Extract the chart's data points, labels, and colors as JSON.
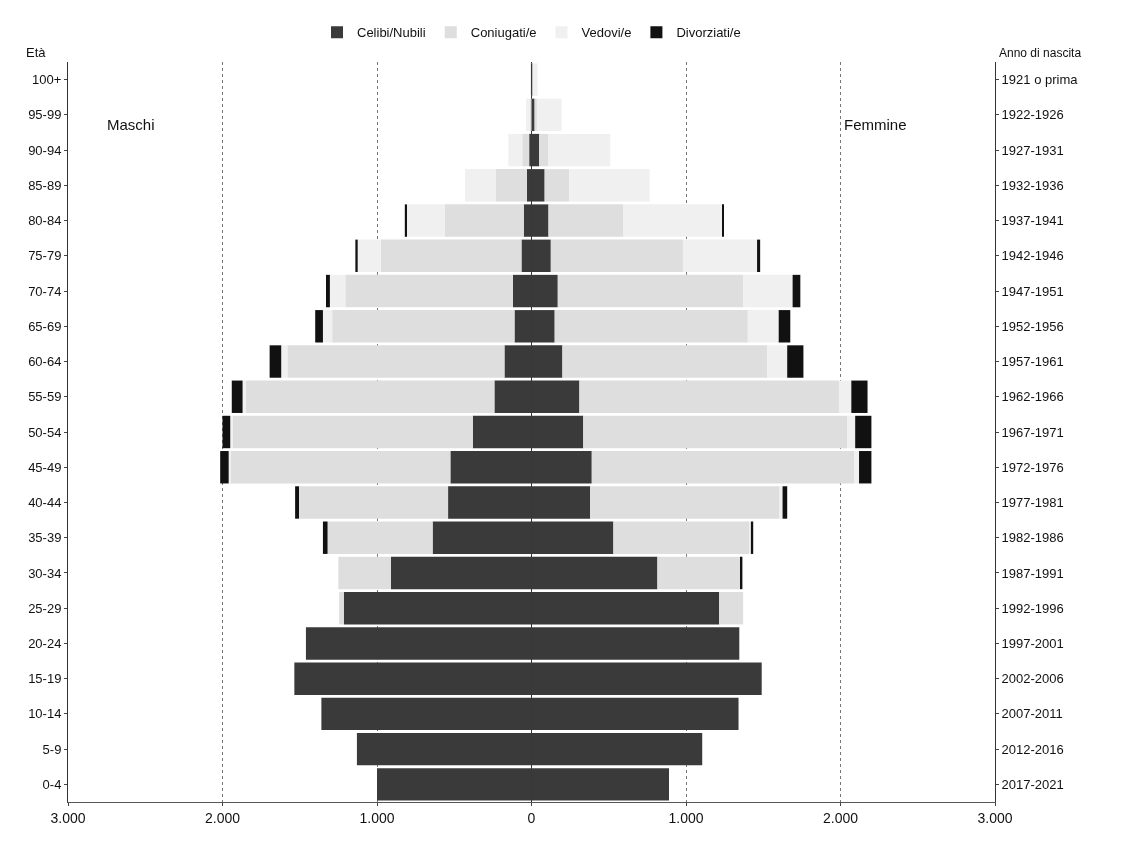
{
  "chart_data": {
    "type": "bar",
    "orientation": "horizontal",
    "stacked": true,
    "ylabel": "Età",
    "y2label": "Anno di nascita",
    "annotations": [
      "Maschi",
      "Femmine"
    ],
    "categories": [
      "100+",
      "95-99",
      "90-94",
      "85-89",
      "80-84",
      "75-79",
      "70-74",
      "65-69",
      "60-64",
      "55-59",
      "50-54",
      "45-49",
      "40-44",
      "35-39",
      "30-34",
      "25-29",
      "20-24",
      "15-19",
      "10-14",
      "5-9",
      "0-4"
    ],
    "y2_categories": [
      "1921 o prima",
      "1922-1926",
      "1927-1931",
      "1932-1936",
      "1937-1941",
      "1942-1946",
      "1947-1951",
      "1952-1956",
      "1957-1961",
      "1962-1966",
      "1967-1971",
      "1972-1976",
      "1977-1981",
      "1982-1986",
      "1987-1991",
      "1992-1996",
      "1997-2001",
      "2002-2006",
      "2007-2011",
      "2012-2016",
      "2017-2021"
    ],
    "series": [
      {
        "name": "Celibi/Nubili",
        "color": "#3a3a3a",
        "values": [
          0,
          null,
          -15,
          -30,
          -50,
          -65,
          -120,
          -110,
          -175,
          -240,
          -380,
          -525,
          -540,
          -640,
          -910,
          -1215,
          -1460,
          -1535,
          -1360,
          -1130,
          -1000
        ]
      },
      {
        "name": "Coniugati/e",
        "color": "#dedede",
        "values": [
          0,
          -10,
          -45,
          -200,
          -510,
          -910,
          -1085,
          -1180,
          -1405,
          -1610,
          -1555,
          -1425,
          -965,
          -680,
          -340,
          -30,
          0,
          0,
          0,
          0,
          0
        ]
      },
      {
        "name": "Vedovi/e",
        "color": "#f0f0f0",
        "values": [
          -5,
          -25,
          -90,
          -200,
          -250,
          -150,
          -100,
          -60,
          -40,
          -20,
          -15,
          -10,
          null,
          0,
          0,
          0,
          0,
          0,
          0,
          0,
          0
        ]
      },
      {
        "name": "Divorziati/e",
        "color": "#111111",
        "values": [
          0,
          0,
          0,
          0,
          -10,
          -15,
          -25,
          -50,
          -75,
          -70,
          -50,
          -55,
          -25,
          -30,
          0,
          0,
          0,
          0,
          0,
          0,
          0
        ]
      },
      {
        "color": "#3a3a3a",
        "values": [
          5,
          20,
          50,
          85,
          110,
          125,
          170,
          150,
          200,
          310,
          335,
          390,
          380,
          530,
          815,
          1215,
          1345,
          1490,
          1340,
          1105,
          890
        ]
      },
      {
        "color": "#dedede",
        "values": [
          0,
          15,
          60,
          160,
          485,
          855,
          1200,
          1250,
          1325,
          1680,
          1710,
          1700,
          1225,
          880,
          540,
          155,
          0,
          0,
          0,
          0,
          0
        ]
      },
      {
        "color": "#f0f0f0",
        "values": [
          35,
          160,
          400,
          520,
          640,
          480,
          320,
          200,
          130,
          80,
          50,
          30,
          20,
          10,
          0,
          0,
          0,
          0,
          0,
          0,
          0
        ]
      },
      {
        "color": "#111111",
        "values": [
          0,
          0,
          0,
          0,
          10,
          20,
          50,
          75,
          105,
          105,
          105,
          80,
          30,
          15,
          10,
          0,
          0,
          0,
          0,
          0,
          0
        ]
      }
    ],
    "xlim": [
      -3000,
      3000
    ],
    "xticks": [
      {
        "value": -3000,
        "label": "3.000"
      },
      {
        "value": -2000,
        "label": "2.000"
      },
      {
        "value": -1000,
        "label": "1.000"
      },
      0,
      {
        "value": 1000,
        "label": "1.000"
      },
      {
        "value": 2000,
        "label": "2.000"
      },
      {
        "value": 3000,
        "label": "3.000"
      }
    ],
    "grid": "x",
    "legend": "top"
  }
}
